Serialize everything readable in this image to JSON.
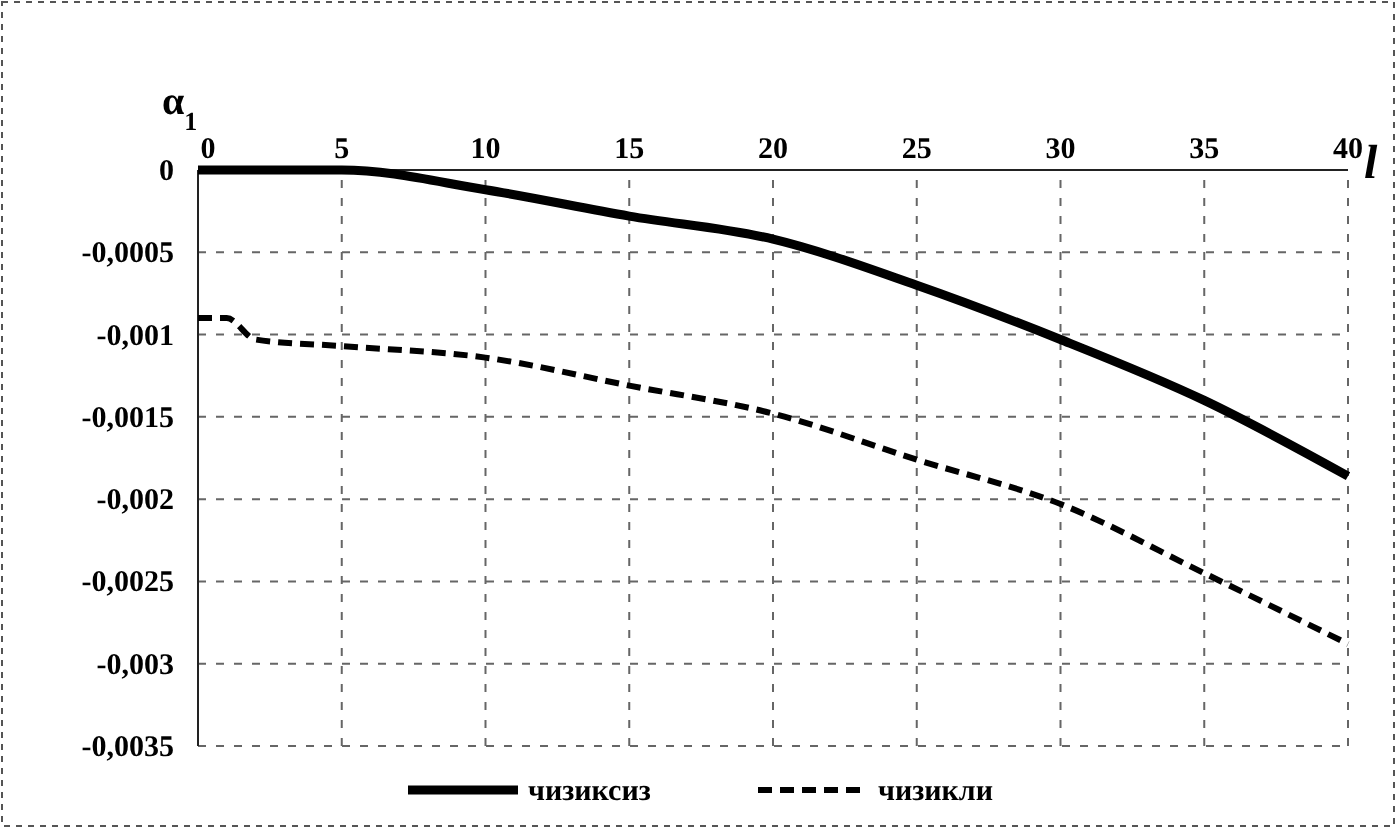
{
  "chart_data": {
    "type": "line",
    "xlabel": "l",
    "ylabel": "α$_{1}$",
    "x": [
      0,
      5,
      10,
      15,
      20,
      25,
      30,
      35,
      40
    ],
    "xlim": [
      0,
      40
    ],
    "xticks": [
      0,
      5,
      10,
      15,
      20,
      25,
      30,
      35,
      40
    ],
    "ylim": [
      -0.0035,
      0
    ],
    "yticks": [
      {
        "value": 0,
        "label": "0"
      },
      {
        "value": -0.0005,
        "label": "-0,0005"
      },
      {
        "value": -0.001,
        "label": "-0,001"
      },
      {
        "value": -0.0015,
        "label": "-0,0015"
      },
      {
        "value": -0.002,
        "label": "-0,002"
      },
      {
        "value": -0.0025,
        "label": "-0,0025"
      },
      {
        "value": -0.003,
        "label": "-0,003"
      },
      {
        "value": -0.0035,
        "label": "-0,0035"
      }
    ],
    "grid": true,
    "legend": "bottom",
    "series": [
      {
        "name": "чизиксиз",
        "color": "#000000",
        "line_style": "solid",
        "values": [
          0,
          0,
          -0.00012,
          -0.00028,
          -0.00042,
          -0.0007,
          -0.00103,
          -0.0014,
          -0.00186
        ]
      },
      {
        "name": "чизикли",
        "color": "#000000",
        "line_style": "dashed",
        "x": [
          0,
          1,
          2,
          5,
          10,
          15,
          20,
          25,
          30,
          35,
          40
        ],
        "values": [
          -0.0009,
          -0.0009,
          -0.00103,
          -0.00107,
          -0.00114,
          -0.00131,
          -0.00148,
          -0.00176,
          -0.00203,
          -0.00245,
          -0.00288
        ]
      }
    ]
  }
}
